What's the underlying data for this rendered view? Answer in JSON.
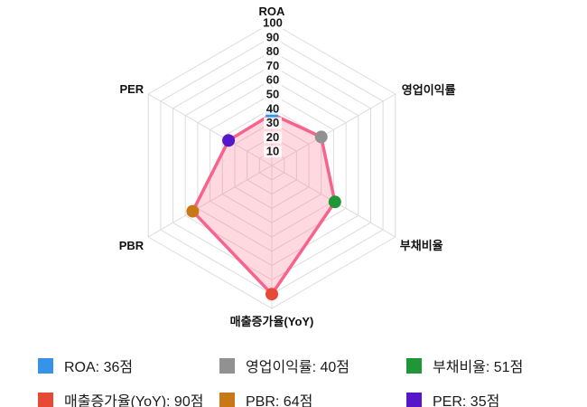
{
  "chart_data": {
    "type": "radar",
    "categories": [
      "ROA",
      "영업이익률",
      "부채비율",
      "매출증가율(YoY)",
      "PBR",
      "PER"
    ],
    "values": [
      36,
      40,
      51,
      90,
      64,
      35
    ],
    "unit": "점",
    "axis_min": 0,
    "axis_max": 100,
    "tick_step": 10,
    "tick_labels": [
      "10",
      "20",
      "30",
      "40",
      "50",
      "60",
      "70",
      "80",
      "90",
      "100"
    ],
    "point_colors": [
      "#3793E8",
      "#919191",
      "#1F9638",
      "#E74A34",
      "#C97818",
      "#5517C9"
    ],
    "fill_color": "rgba(255, 99, 132, 0.25)",
    "line_color": "#F8638D",
    "grid_color": "#DCDCDC",
    "grid": true,
    "legend_position": "bottom"
  },
  "legend": {
    "items": [
      {
        "label": "ROA: 36점",
        "color": "#3793E8"
      },
      {
        "label": "영업이익률: 40점",
        "color": "#919191"
      },
      {
        "label": "부채비율: 51점",
        "color": "#1F9638"
      },
      {
        "label": "매출증가율(YoY): 90점",
        "color": "#E74A34"
      },
      {
        "label": "PBR: 64점",
        "color": "#C97818"
      },
      {
        "label": "PER: 35점",
        "color": "#5517C9"
      }
    ]
  }
}
